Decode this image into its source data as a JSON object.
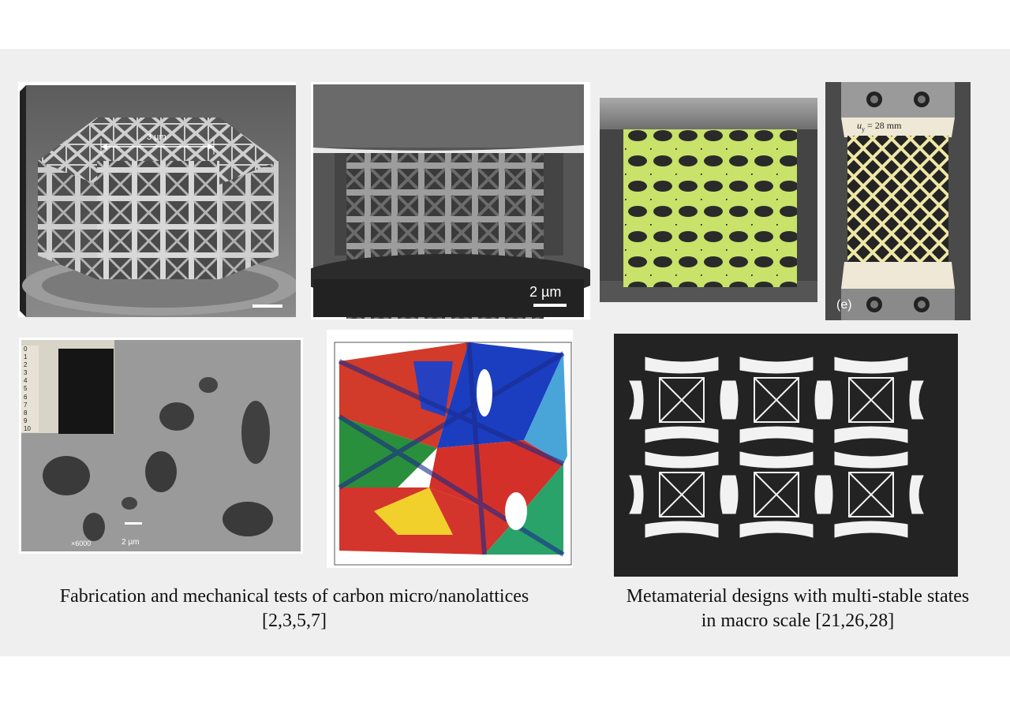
{
  "figures": {
    "lattice_3d": {
      "scale_label": "3 µm"
    },
    "pillar_compression": {
      "scale_label": "2 µm"
    },
    "metamaterial_tensile": {
      "label": "(e)",
      "displacement_label": "u",
      "displacement_subscript": "y",
      "displacement_value": " = 28 mm"
    },
    "porous_carbon": {
      "magnification": "×6000",
      "scale_label": "2 µm",
      "ruler_marks": [
        "0",
        "1",
        "2",
        "3",
        "4",
        "5",
        "6",
        "7",
        "8",
        "9",
        "10"
      ]
    }
  },
  "captions": {
    "left": {
      "line1": "Fabrication and mechanical tests of carbon micro/nanolattices",
      "line2": "[2,3,5,7]"
    },
    "right": {
      "line1": "Metamaterial designs with multi-stable states",
      "line2": "in macro scale [21,26,28]"
    }
  }
}
